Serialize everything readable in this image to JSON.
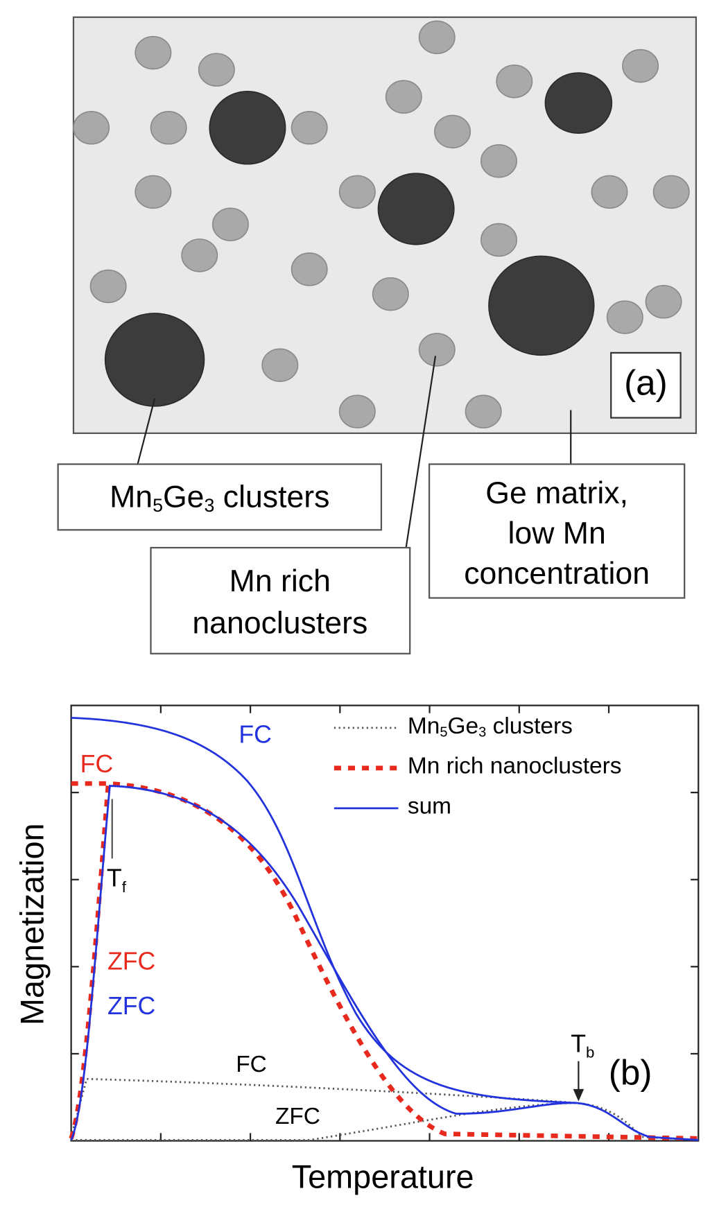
{
  "panel_a": {
    "label": "(a)",
    "mn5ge3_box": [
      "Mn",
      "5",
      "Ge",
      "3",
      " clusters"
    ],
    "nanoclusters_box": [
      "Mn rich",
      "nanoclusters"
    ],
    "matrix_box": [
      "Ge matrix,",
      "low Mn",
      "concentration"
    ]
  },
  "panel_b": {
    "label": "(b)",
    "x_label": "Temperature",
    "y_label": "Magnetization",
    "legend": {
      "mn5ge3": [
        "Mn",
        "5",
        "Ge",
        "3",
        " clusters"
      ],
      "nanoclusters": "Mn rich nanoclusters",
      "sum": "sum"
    },
    "curve_labels": {
      "fc_sum": "FC",
      "fc_nano": "FC",
      "zfc_nano": "ZFC",
      "zfc_sum": "ZFC",
      "fc_mn5ge3": "FC",
      "zfc_mn5ge3": "ZFC"
    },
    "tf": [
      "T",
      "f"
    ],
    "tb": [
      "T",
      "b"
    ]
  }
}
